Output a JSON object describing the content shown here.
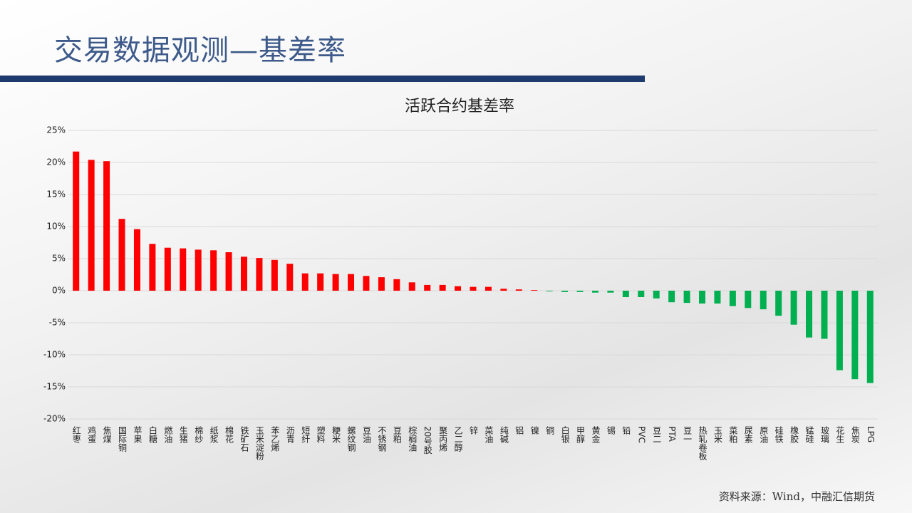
{
  "header": {
    "title": "交易数据观测—基差率"
  },
  "footer": {
    "source": "资料来源：Wind，中融汇信期货"
  },
  "chart_data": {
    "type": "bar",
    "title": "活跃合约基差率",
    "categories": [
      "红枣",
      "鸡蛋",
      "焦煤",
      "国际铜",
      "苹果",
      "白糖",
      "燃油",
      "生猪",
      "棉纱",
      "纸浆",
      "棉花",
      "铁矿石",
      "玉米淀粉",
      "苯乙烯",
      "沥青",
      "短纤",
      "塑料",
      "粳米",
      "螺纹钢",
      "豆油",
      "不锈钢",
      "豆粕",
      "棕榈油",
      "20号胶",
      "聚丙烯",
      "乙二醇",
      "锌",
      "菜油",
      "纯碱",
      "铝",
      "镍",
      "铜",
      "白银",
      "甲醇",
      "黄金",
      "锡",
      "铅",
      "PVC",
      "豆二",
      "PTA",
      "豆一",
      "热轧卷板",
      "玉米",
      "菜粕",
      "尿素",
      "原油",
      "硅铁",
      "橡胶",
      "锰硅",
      "玻璃",
      "花生",
      "焦炭",
      "LPG"
    ],
    "values": [
      21.7,
      20.4,
      20.2,
      11.2,
      9.6,
      7.3,
      6.7,
      6.6,
      6.4,
      6.3,
      6.0,
      5.3,
      5.1,
      4.8,
      4.2,
      2.7,
      2.7,
      2.6,
      2.6,
      2.3,
      2.1,
      1.8,
      1.3,
      0.9,
      0.9,
      0.7,
      0.6,
      0.6,
      0.3,
      0.2,
      0.1,
      -0.1,
      -0.2,
      -0.2,
      -0.3,
      -0.3,
      -1.0,
      -1.0,
      -1.2,
      -1.8,
      -1.9,
      -2.0,
      -2.0,
      -2.4,
      -2.7,
      -2.9,
      -3.9,
      -5.3,
      -7.3,
      -7.5,
      -12.4,
      -13.8,
      -14.4
    ],
    "color_positive": "#ff0000",
    "color_negative": "#00b050",
    "ylim": [
      -20,
      25
    ],
    "yticks": [
      {
        "value": -20,
        "label": "-20%"
      },
      {
        "value": -15,
        "label": "-15%"
      },
      {
        "value": -10,
        "label": "-10%"
      },
      {
        "value": -5,
        "label": "-5%"
      },
      {
        "value": 0,
        "label": "0%"
      },
      {
        "value": 5,
        "label": "5%"
      },
      {
        "value": 10,
        "label": "10%"
      },
      {
        "value": 15,
        "label": "15%"
      },
      {
        "value": 20,
        "label": "20%"
      },
      {
        "value": 25,
        "label": "25%"
      }
    ],
    "grid": true
  }
}
